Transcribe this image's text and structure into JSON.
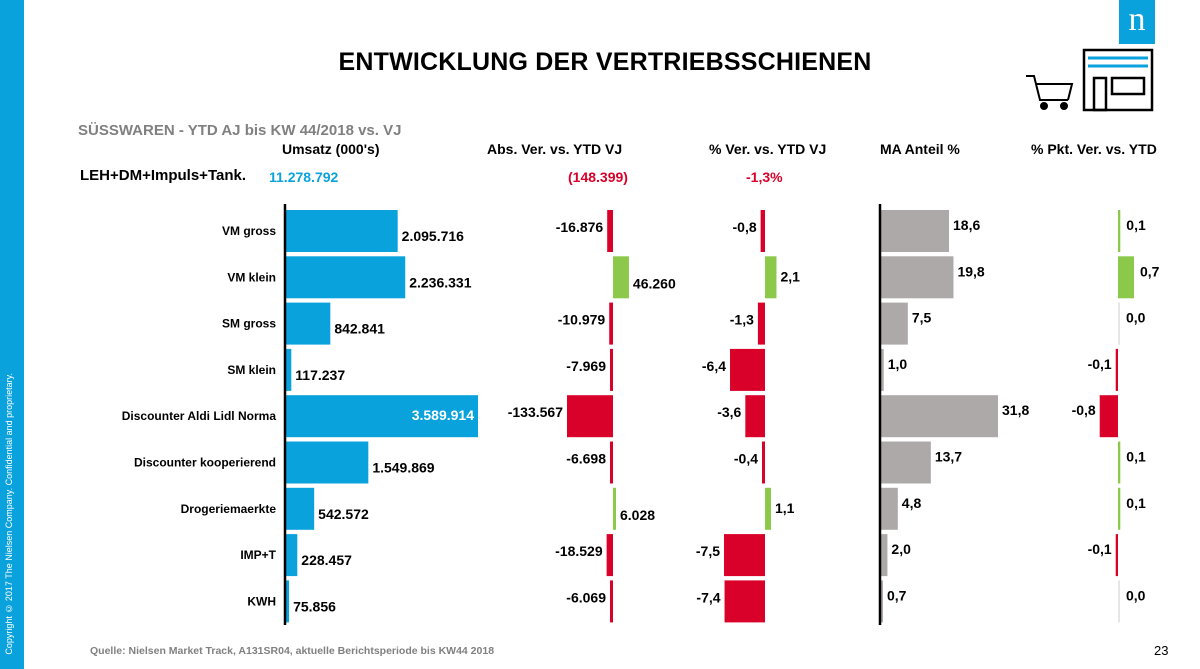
{
  "header": {
    "title": "ENTWICKLUNG DER VERTRIEBSSCHIENEN",
    "subtitle": "SÜSSWAREN - YTD AJ  bis KW 44/2018 vs. VJ",
    "logo_letter": "n"
  },
  "side": {
    "copyright": "Copyright © 2017 The Nielsen Company. Confidential and proprietary."
  },
  "totals": {
    "label": "LEH+DM+Impuls+Tank.",
    "umsatz": "11.278.792",
    "abs": "(148.399)",
    "pct": "-1,3%"
  },
  "footer": {
    "source": "Quelle: Nielsen Market Track, A131SR04, aktuelle Berichtsperiode bis KW44 2018",
    "page": "23"
  },
  "colors": {
    "blue": "#0aa2dc",
    "red": "#d9002a",
    "green": "#8cc94a",
    "gray": "#ada9a8"
  },
  "icons": [
    "logo-n-icon",
    "shopping-cart-icon",
    "store-icon"
  ],
  "chart_data": {
    "type": "bar",
    "categories": [
      "VM gross",
      "VM klein",
      "SM gross",
      "SM klein",
      "Discounter Aldi  Lidl  Norma",
      "Discounter kooperierend",
      "Drogeriemaerkte",
      "IMP+T",
      "KWH"
    ],
    "series": [
      {
        "name": "Umsatz (000's)",
        "values": [
          2095716,
          2236331,
          842841,
          117237,
          3589914,
          1549869,
          542572,
          228457,
          75856
        ],
        "labels": [
          "2.095.716",
          "2.236.331",
          "842.841",
          "117.237",
          "3.589.914",
          "1.549.869",
          "542.572",
          "228.457",
          "75.856"
        ]
      },
      {
        "name": "Abs. Ver. vs. YTD VJ",
        "values": [
          -16876,
          46260,
          -10979,
          -7969,
          -133567,
          -6698,
          6028,
          -18529,
          -6069
        ],
        "labels": [
          "-16.876",
          "46.260",
          "-10.979",
          "-7.969",
          "-133.567",
          "-6.698",
          "6.028",
          "-18.529",
          "-6.069"
        ]
      },
      {
        "name": "% Ver. vs. YTD VJ",
        "values": [
          -0.8,
          2.1,
          -1.3,
          -6.4,
          -3.6,
          -0.4,
          1.1,
          -7.5,
          -7.4
        ],
        "labels": [
          "-0,8",
          "2,1",
          "-1,3",
          "-6,4",
          "-3,6",
          "-0,4",
          "1,1",
          "-7,5",
          "-7,4"
        ]
      },
      {
        "name": "MA Anteil %",
        "values": [
          18.6,
          19.8,
          7.5,
          1.0,
          31.8,
          13.7,
          4.8,
          2.0,
          0.7
        ],
        "labels": [
          "18,6",
          "19,8",
          "7,5",
          "1,0",
          "31,8",
          "13,7",
          "4,8",
          "2,0",
          "0,7"
        ]
      },
      {
        "name": "% Pkt. Ver. vs. YTD",
        "values": [
          0.1,
          0.7,
          0.0,
          -0.1,
          -0.8,
          0.1,
          0.1,
          -0.1,
          0.0
        ],
        "labels": [
          "0,1",
          "0,7",
          "0,0",
          "-0,1",
          "-0,8",
          "0,1",
          "0,1",
          "-0,1",
          "0,0"
        ]
      }
    ]
  }
}
